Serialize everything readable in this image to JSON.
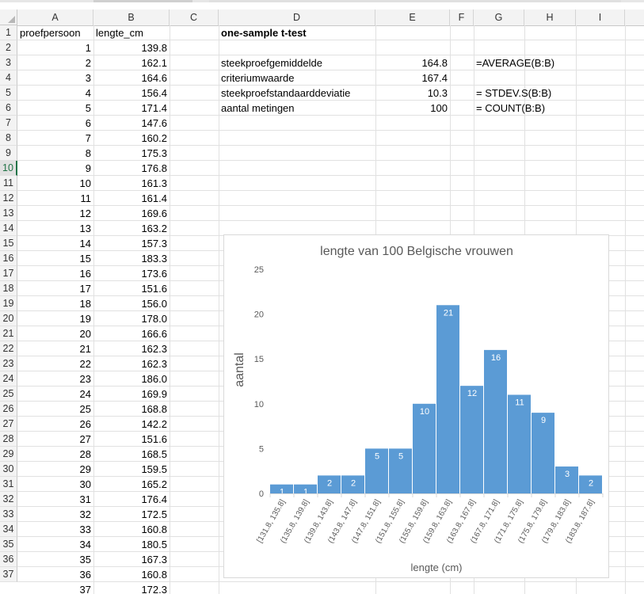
{
  "sheet": {
    "columns": [
      "A",
      "B",
      "C",
      "D",
      "E",
      "F",
      "G",
      "H",
      "I"
    ],
    "row_numbers": [
      "1",
      "2",
      "3",
      "4",
      "5",
      "6",
      "7",
      "8",
      "9",
      "10",
      "11",
      "12",
      "13",
      "14",
      "15",
      "16",
      "17",
      "18",
      "19",
      "20",
      "21",
      "22",
      "23",
      "24",
      "25",
      "26",
      "27",
      "28",
      "29",
      "30",
      "31",
      "32",
      "33",
      "34",
      "35",
      "36",
      "37"
    ],
    "active_row": "10",
    "headers": {
      "a": "proefpersoon",
      "b": "lengte_cm"
    },
    "rows": [
      [
        "1",
        "139.8"
      ],
      [
        "2",
        "162.1"
      ],
      [
        "3",
        "164.6"
      ],
      [
        "4",
        "156.4"
      ],
      [
        "5",
        "171.4"
      ],
      [
        "6",
        "147.6"
      ],
      [
        "7",
        "160.2"
      ],
      [
        "8",
        "175.3"
      ],
      [
        "9",
        "176.8"
      ],
      [
        "10",
        "161.3"
      ],
      [
        "11",
        "161.4"
      ],
      [
        "12",
        "169.6"
      ],
      [
        "13",
        "163.2"
      ],
      [
        "14",
        "157.3"
      ],
      [
        "15",
        "183.3"
      ],
      [
        "16",
        "173.6"
      ],
      [
        "17",
        "151.6"
      ],
      [
        "18",
        "156.0"
      ],
      [
        "19",
        "178.0"
      ],
      [
        "20",
        "166.6"
      ],
      [
        "21",
        "162.3"
      ],
      [
        "22",
        "162.3"
      ],
      [
        "23",
        "186.0"
      ],
      [
        "24",
        "169.9"
      ],
      [
        "25",
        "168.8"
      ],
      [
        "26",
        "142.2"
      ],
      [
        "27",
        "151.6"
      ],
      [
        "28",
        "168.5"
      ],
      [
        "29",
        "159.5"
      ],
      [
        "30",
        "165.2"
      ],
      [
        "31",
        "176.4"
      ],
      [
        "32",
        "172.5"
      ],
      [
        "33",
        "160.8"
      ],
      [
        "34",
        "180.5"
      ],
      [
        "35",
        "167.3"
      ],
      [
        "36",
        "160.8"
      ],
      [
        "37",
        "172.3"
      ]
    ],
    "ttest": {
      "title": "one-sample t-test",
      "rows": [
        {
          "label": "steekproefgemiddelde",
          "value": "164.8",
          "formula": "=AVERAGE(B:B)"
        },
        {
          "label": "criteriumwaarde",
          "value": "167.4",
          "formula": ""
        },
        {
          "label": "steekproefstandaarddeviatie",
          "value": "10.3",
          "formula": "= STDEV.S(B:B)"
        },
        {
          "label": "aantal metingen",
          "value": "100",
          "formula": "= COUNT(B:B)"
        }
      ]
    }
  },
  "colors": {
    "bar": "#5b9bd5",
    "grid": "#d9d9d9",
    "axis_text": "#595959",
    "header_bg": "#f3f3f3",
    "active": "#217346"
  },
  "chart_data": {
    "type": "bar",
    "title": "lengte van 100 Belgische vrouwen",
    "xlabel": "lengte (cm)",
    "ylabel": "aantal",
    "categories": [
      "[131.8, 135.8]",
      "(135.8, 139.8]",
      "(139.8, 143.8]",
      "(143.8, 147.8]",
      "(147.8, 151.8]",
      "(151.8, 155.8]",
      "(155.8, 159.8]",
      "(159.8, 163.8]",
      "(163.8, 167.8]",
      "(167.8, 171.8]",
      "(171.8, 175.8]",
      "(175.8, 179.8]",
      "(179.8, 183.8]",
      "(183.8, 187.8]"
    ],
    "values": [
      1,
      1,
      2,
      2,
      5,
      5,
      10,
      21,
      12,
      16,
      11,
      9,
      3,
      2
    ],
    "ylim": [
      0,
      25
    ],
    "yticks": [
      0,
      5,
      10,
      15,
      20,
      25
    ],
    "grid": false,
    "legend": "none"
  }
}
